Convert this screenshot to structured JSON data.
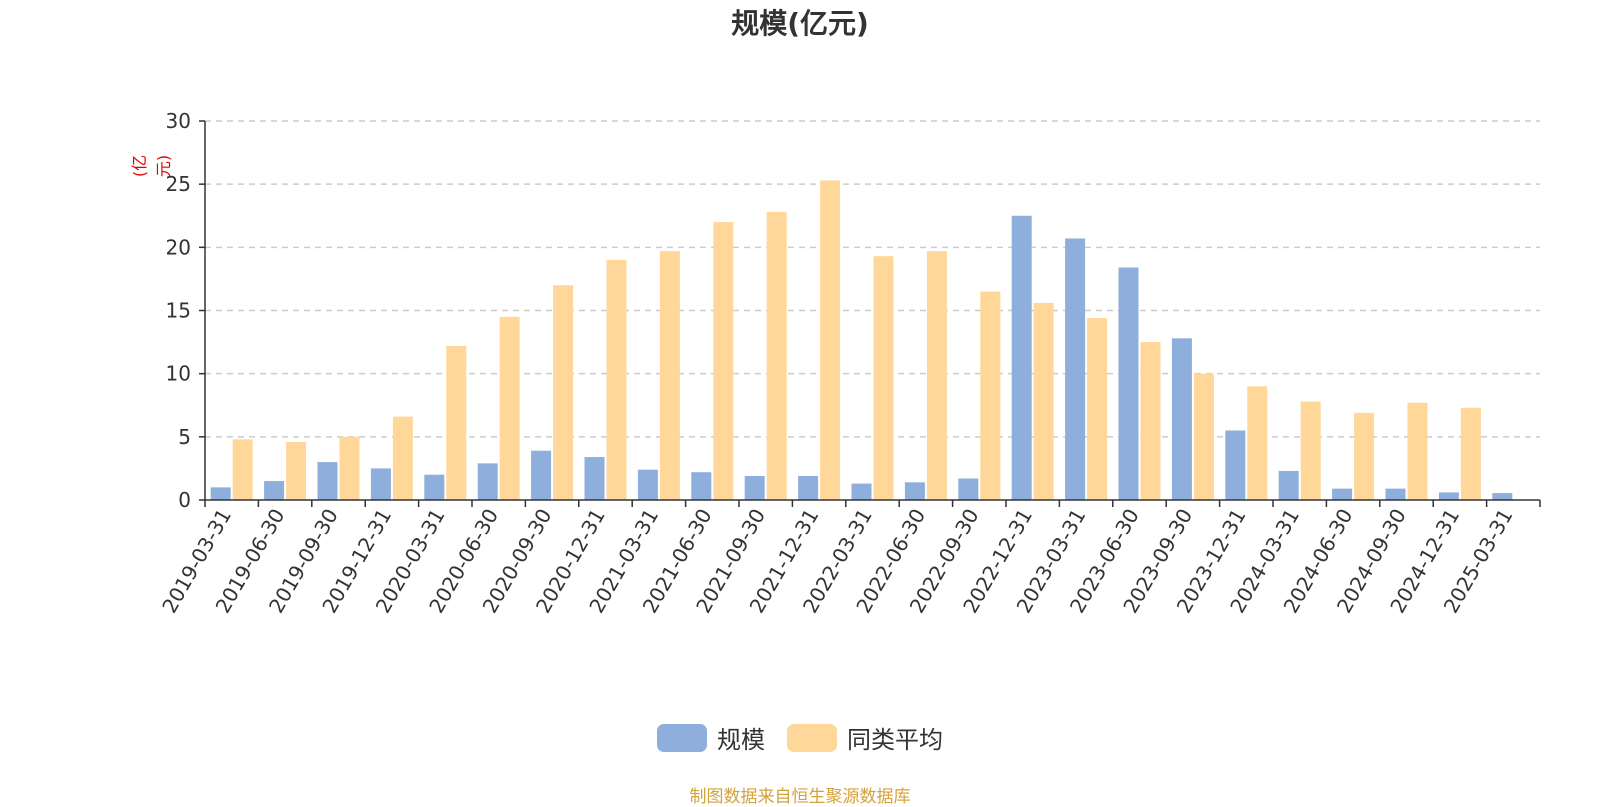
{
  "chart_data": {
    "type": "bar",
    "title": "规模(亿元)",
    "ylabel": "(亿元)",
    "ylim": [
      0,
      30
    ],
    "yticks": [
      0,
      5,
      10,
      15,
      20,
      25,
      30
    ],
    "grid": true,
    "legend_position": "bottom",
    "categories": [
      "2019-03-31",
      "2019-06-30",
      "2019-09-30",
      "2019-12-31",
      "2020-03-31",
      "2020-06-30",
      "2020-09-30",
      "2020-12-31",
      "2021-03-31",
      "2021-06-30",
      "2021-09-30",
      "2021-12-31",
      "2022-03-31",
      "2022-06-30",
      "2022-09-30",
      "2022-12-31",
      "2023-03-31",
      "2023-06-30",
      "2023-09-30",
      "2023-12-31",
      "2024-03-31",
      "2024-06-30",
      "2024-09-30",
      "2024-12-31",
      "2025-03-31"
    ],
    "series": [
      {
        "name": "规模",
        "color": "#8eaedc",
        "values": [
          1.0,
          1.5,
          3.0,
          2.5,
          2.0,
          2.9,
          3.9,
          3.4,
          2.4,
          2.2,
          1.9,
          1.9,
          1.3,
          1.4,
          1.7,
          22.5,
          20.7,
          18.4,
          12.8,
          5.5,
          2.3,
          0.9,
          0.9,
          0.6,
          0.55
        ]
      },
      {
        "name": "同类平均",
        "color": "#ffd899",
        "values": [
          4.8,
          4.6,
          5.0,
          6.6,
          12.2,
          14.5,
          17.0,
          19.0,
          19.7,
          22.0,
          22.8,
          25.3,
          19.3,
          19.7,
          16.5,
          15.6,
          14.4,
          12.5,
          10.0,
          9.0,
          7.8,
          6.9,
          7.7,
          7.3,
          null
        ]
      }
    ]
  },
  "source": "制图数据来自恒生聚源数据库"
}
